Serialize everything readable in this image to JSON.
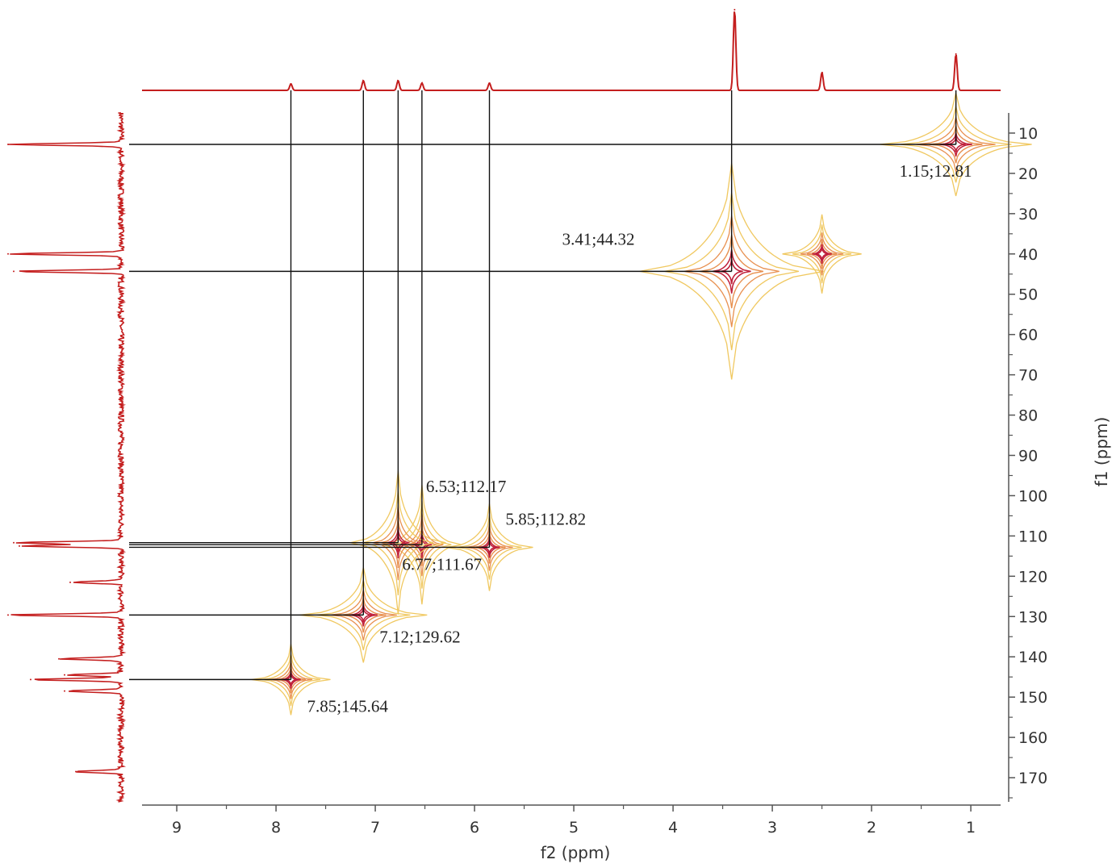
{
  "chart_data": {
    "type": "heatmap",
    "subtype": "2D NMR HSQC contour plot",
    "xlabel": "f2 (ppm)",
    "ylabel": "f1 (ppm)",
    "xlim": [
      9.35,
      0.7
    ],
    "ylim": [
      5,
      176
    ],
    "x_ticks": [
      {
        "value": 9,
        "label": "9"
      },
      {
        "value": 8,
        "label": "8"
      },
      {
        "value": 7,
        "label": "7"
      },
      {
        "value": 6,
        "label": "6"
      },
      {
        "value": 5,
        "label": "5"
      },
      {
        "value": 4,
        "label": "4"
      },
      {
        "value": 3,
        "label": "3"
      },
      {
        "value": 2,
        "label": "2"
      },
      {
        "value": 1,
        "label": "1"
      }
    ],
    "y_ticks": [
      {
        "value": 10,
        "label": "10"
      },
      {
        "value": 20,
        "label": "20"
      },
      {
        "value": 30,
        "label": "30"
      },
      {
        "value": 40,
        "label": "40"
      },
      {
        "value": 50,
        "label": "50"
      },
      {
        "value": 60,
        "label": "60"
      },
      {
        "value": 70,
        "label": "70"
      },
      {
        "value": 80,
        "label": "80"
      },
      {
        "value": 90,
        "label": "90"
      },
      {
        "value": 100,
        "label": "100"
      },
      {
        "value": 110,
        "label": "110"
      },
      {
        "value": 120,
        "label": "120"
      },
      {
        "value": 130,
        "label": "130"
      },
      {
        "value": 140,
        "label": "140"
      },
      {
        "value": 150,
        "label": "150"
      },
      {
        "value": 160,
        "label": "160"
      },
      {
        "value": 170,
        "label": "170"
      }
    ],
    "grid": false,
    "colors": {
      "contour_outer": "#f0c860",
      "contour_mid": "#e89050",
      "contour_inner": "#c0203a",
      "spectrum": "#c41e1e",
      "guide": "#111111"
    },
    "proton_spectrum_peaks": [
      {
        "x": 7.85,
        "height": 0.08
      },
      {
        "x": 7.12,
        "height": 0.12
      },
      {
        "x": 6.77,
        "height": 0.12
      },
      {
        "x": 6.53,
        "height": 0.09
      },
      {
        "x": 5.85,
        "height": 0.09
      },
      {
        "x": 3.38,
        "height": 1.0
      },
      {
        "x": 2.5,
        "height": 0.22
      },
      {
        "x": 1.15,
        "height": 0.45
      }
    ],
    "carbon_spectrum_peaks": [
      {
        "y": 12.81,
        "height": 1.0
      },
      {
        "y": 40.0,
        "height": 1.0
      },
      {
        "y": 44.32,
        "height": 0.95
      },
      {
        "y": 111.67,
        "height": 0.95
      },
      {
        "y": 112.5,
        "height": 0.9
      },
      {
        "y": 121.5,
        "height": 0.45
      },
      {
        "y": 129.62,
        "height": 1.0
      },
      {
        "y": 140.5,
        "height": 0.55
      },
      {
        "y": 144.5,
        "height": 0.5
      },
      {
        "y": 145.64,
        "height": 0.8
      },
      {
        "y": 148.5,
        "height": 0.5
      },
      {
        "y": 168.5,
        "height": 0.4
      }
    ],
    "contour_peaks": [
      {
        "x": 1.15,
        "y": 12.81,
        "label": "1.15;12.81",
        "guides": true
      },
      {
        "x": 3.41,
        "y": 44.32,
        "label": "3.41;44.32",
        "guides": true
      },
      {
        "x": 6.53,
        "y": 112.17,
        "label": "6.53;112.17",
        "guides": true
      },
      {
        "x": 5.85,
        "y": 112.82,
        "label": "5.85;112.82",
        "guides": true
      },
      {
        "x": 6.77,
        "y": 111.67,
        "label": "6.77;111.67",
        "guides": true
      },
      {
        "x": 7.12,
        "y": 129.62,
        "label": "7.12;129.62",
        "guides": true
      },
      {
        "x": 7.85,
        "y": 145.64,
        "label": "7.85;145.64",
        "guides": true
      },
      {
        "x": 2.5,
        "y": 40.0,
        "label": "",
        "guides": false
      }
    ],
    "annotations": [
      {
        "text": "1.15;12.81"
      },
      {
        "text": "3.41;44.32"
      },
      {
        "text": "6.53;112.17"
      },
      {
        "text": "5.85;112.82"
      },
      {
        "text": "6.77;111.67"
      },
      {
        "text": "7.12;129.62"
      },
      {
        "text": "7.85;145.64"
      }
    ]
  }
}
